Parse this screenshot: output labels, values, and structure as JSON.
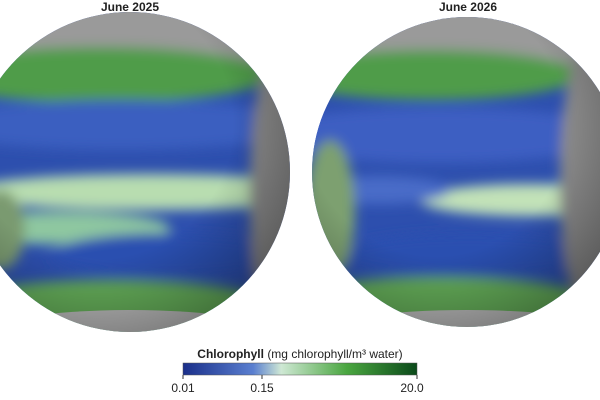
{
  "panels": [
    {
      "title": "June 2025"
    },
    {
      "title": "June 2026"
    }
  ],
  "legend": {
    "title": "Chlorophyll",
    "unit": "(mg chlorophyll/m³ water)",
    "ticks": [
      "0.01",
      "0.15",
      "20.0"
    ]
  }
}
